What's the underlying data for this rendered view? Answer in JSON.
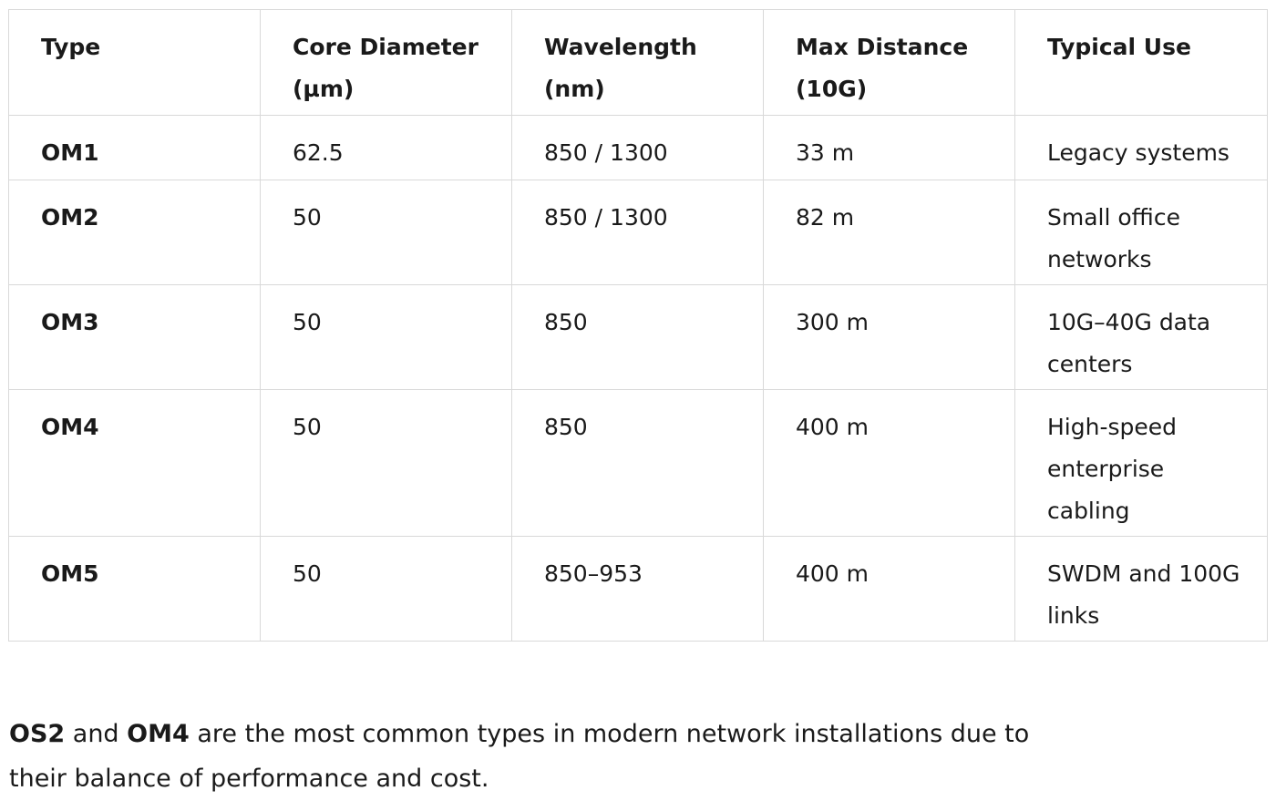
{
  "table": {
    "headers": [
      "Type",
      "Core Diameter (µm)",
      "Wavelength (nm)",
      "Max Distance (10G)",
      "Typical Use"
    ],
    "rows": [
      {
        "type": "OM1",
        "core": "62.5",
        "wavelength": "850 / 1300",
        "distance": "33 m",
        "use": "Legacy systems"
      },
      {
        "type": "OM2",
        "core": "50",
        "wavelength": "850 / 1300",
        "distance": "82 m",
        "use": "Small office networks"
      },
      {
        "type": "OM3",
        "core": "50",
        "wavelength": "850",
        "distance": "300 m",
        "use": "10G–40G data centers"
      },
      {
        "type": "OM4",
        "core": "50",
        "wavelength": "850",
        "distance": "400 m",
        "use": "High-speed enterprise cabling"
      },
      {
        "type": "OM5",
        "core": "50",
        "wavelength": "850–953",
        "distance": "400 m",
        "use": "SWDM and 100G links"
      }
    ]
  },
  "summary": {
    "term1": "OS2",
    "joiner": " and ",
    "term2": "OM4",
    "rest": " are the most common types in modern network installations due to their balance of performance and cost."
  }
}
